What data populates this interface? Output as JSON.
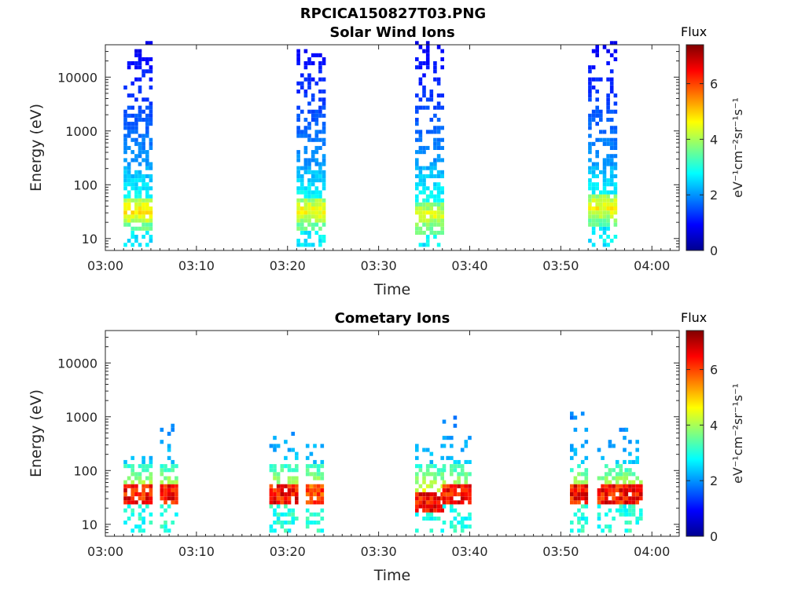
{
  "figure": {
    "title": "RPCICA150827T03.PNG"
  },
  "colorbar": {
    "label_flux": "Flux",
    "unit_label": "eV⁻¹cm⁻²sr⁻¹s⁻¹",
    "ticks": [
      "0",
      "2",
      "4",
      "6"
    ],
    "range": [
      0,
      7.4
    ],
    "colormap": "jet"
  },
  "chart_data": [
    {
      "type": "heatmap",
      "title": "Solar Wind Ions",
      "xlabel": "Time",
      "ylabel": "Energy (eV)",
      "yscale": "log",
      "xlim": [
        "03:00",
        "04:03"
      ],
      "ylim": [
        6,
        40000
      ],
      "xticks": [
        "03:00",
        "03:10",
        "03:20",
        "03:30",
        "03:40",
        "03:50",
        "04:00"
      ],
      "yticks": [
        "10",
        "100",
        "1000",
        "10000"
      ],
      "bursts": [
        {
          "start": "03:02",
          "end": "03:05",
          "peak_energy_eV": 30,
          "peak_flux": 5.2,
          "max_energy_eV": 40000
        },
        {
          "start": "03:21",
          "end": "03:24",
          "peak_energy_eV": 30,
          "peak_flux": 5.0,
          "max_energy_eV": 30000
        },
        {
          "start": "03:34",
          "end": "03:37",
          "peak_energy_eV": 25,
          "peak_flux": 4.8,
          "max_energy_eV": 40000
        },
        {
          "start": "03:53",
          "end": "03:56",
          "peak_energy_eV": 35,
          "peak_flux": 5.0,
          "max_energy_eV": 40000
        }
      ]
    },
    {
      "type": "heatmap",
      "title": "Cometary Ions",
      "xlabel": "Time",
      "ylabel": "Energy (eV)",
      "yscale": "log",
      "xlim": [
        "03:00",
        "04:03"
      ],
      "ylim": [
        6,
        40000
      ],
      "xticks": [
        "03:00",
        "03:10",
        "03:20",
        "03:30",
        "03:40",
        "03:50",
        "04:00"
      ],
      "yticks": [
        "10",
        "100",
        "1000",
        "10000"
      ],
      "bursts": [
        {
          "start": "03:02",
          "end": "03:05",
          "peak_energy_eV": 35,
          "peak_flux": 7.0,
          "max_energy_eV": 200
        },
        {
          "start": "03:06",
          "end": "03:08",
          "peak_energy_eV": 35,
          "peak_flux": 7.0,
          "max_energy_eV": 700
        },
        {
          "start": "03:18",
          "end": "03:21",
          "peak_energy_eV": 35,
          "peak_flux": 7.0,
          "max_energy_eV": 500
        },
        {
          "start": "03:22",
          "end": "03:24",
          "peak_energy_eV": 35,
          "peak_flux": 6.5,
          "max_energy_eV": 300
        },
        {
          "start": "03:34",
          "end": "03:37",
          "peak_energy_eV": 25,
          "peak_flux": 7.0,
          "max_energy_eV": 300
        },
        {
          "start": "03:37",
          "end": "03:40",
          "peak_energy_eV": 35,
          "peak_flux": 7.0,
          "max_energy_eV": 1000
        },
        {
          "start": "03:51",
          "end": "03:53",
          "peak_energy_eV": 35,
          "peak_flux": 7.0,
          "max_energy_eV": 1200
        },
        {
          "start": "03:54",
          "end": "03:57",
          "peak_energy_eV": 35,
          "peak_flux": 7.0,
          "max_energy_eV": 600
        },
        {
          "start": "03:57",
          "end": "03:59",
          "peak_energy_eV": 35,
          "peak_flux": 7.0,
          "max_energy_eV": 600
        }
      ]
    }
  ]
}
